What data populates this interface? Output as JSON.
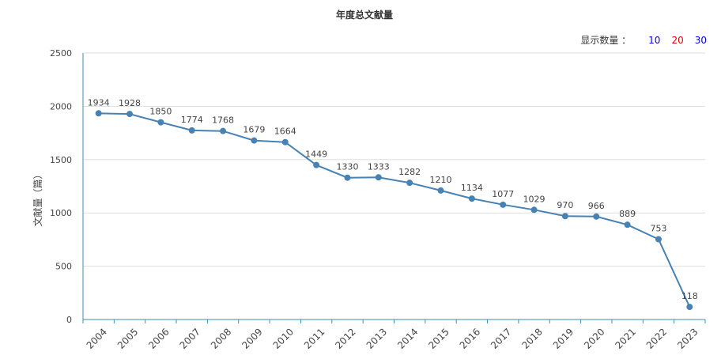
{
  "title": "年度总文献量",
  "display_control": {
    "label": "显示数量 ：",
    "options": [
      {
        "label": "10",
        "color": "#0000ee"
      },
      {
        "label": "20",
        "color": "#dd0000"
      },
      {
        "label": "30",
        "color": "#0000ee"
      }
    ]
  },
  "colors": {
    "line": "#4682b4",
    "point": "#4682b4",
    "axis": "#3a8fb7",
    "grid": "#dddddd"
  },
  "chart_data": {
    "type": "line",
    "title": "年度总文献量",
    "xlabel": "",
    "ylabel": "文献量（篇）",
    "ylim": [
      0,
      2500
    ],
    "yticks": [
      0,
      500,
      1000,
      1500,
      2000,
      2500
    ],
    "grid": true,
    "categories": [
      "2004",
      "2005",
      "2006",
      "2007",
      "2008",
      "2009",
      "2010",
      "2011",
      "2012",
      "2013",
      "2014",
      "2015",
      "2016",
      "2017",
      "2018",
      "2019",
      "2020",
      "2021",
      "2022",
      "2023"
    ],
    "series": [
      {
        "values": [
          1934,
          1928,
          1850,
          1774,
          1768,
          1679,
          1664,
          1449,
          1330,
          1333,
          1282,
          1210,
          1134,
          1077,
          1029,
          970,
          966,
          889,
          753,
          118
        ]
      }
    ]
  }
}
